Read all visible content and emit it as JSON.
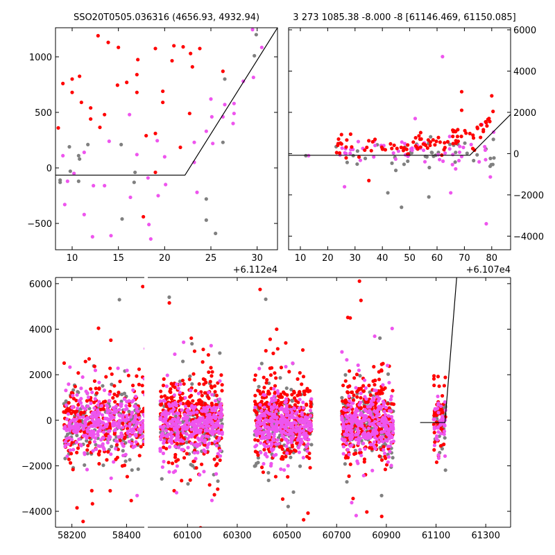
{
  "chart_data": [
    {
      "type": "scatter",
      "title": "SSO20T0505.036316 (4656.93, 4932.94)",
      "xlim": [
        8.2,
        32.2
      ],
      "ylim": [
        -737,
        1262
      ],
      "x_offset_label": "+6.112e4",
      "xticks": [
        10,
        15,
        20,
        25,
        30
      ],
      "yticks": [
        -500,
        0,
        500,
        1000
      ],
      "line": [
        [
          8.2,
          -65
        ],
        [
          22.2,
          -65
        ],
        [
          32.2,
          1262
        ]
      ],
      "series": [
        {
          "name": "red",
          "color": "#ff0000",
          "points": [
            [
              12.8,
              1190
            ],
            [
              13.9,
              1130
            ],
            [
              15,
              1085
            ],
            [
              21,
              1100
            ],
            [
              22,
              1090
            ],
            [
              23.8,
              1075
            ],
            [
              20.8,
              965
            ],
            [
              19,
              1075
            ],
            [
              17.1,
              975
            ],
            [
              10.8,
              825
            ],
            [
              10,
              800
            ],
            [
              9,
              760
            ],
            [
              14.9,
              745
            ],
            [
              15.9,
              770
            ],
            [
              17,
              840
            ],
            [
              17,
              680
            ],
            [
              10,
              680
            ],
            [
              11,
              590
            ],
            [
              12,
              540
            ],
            [
              12,
              440
            ],
            [
              13,
              365
            ],
            [
              13.5,
              480
            ],
            [
              19.8,
              690
            ],
            [
              19.8,
              590
            ],
            [
              22.8,
              1030
            ],
            [
              23,
              910
            ],
            [
              26.3,
              870
            ],
            [
              22.7,
              490
            ],
            [
              18,
              290
            ],
            [
              19,
              310
            ],
            [
              8.5,
              360
            ],
            [
              21.7,
              185
            ],
            [
              19,
              -40
            ],
            [
              17.7,
              -440
            ]
          ]
        },
        {
          "name": "grey",
          "color": "#808080",
          "points": [
            [
              29.9,
              1200
            ],
            [
              29.7,
              1010
            ],
            [
              26.5,
              800
            ],
            [
              26.3,
              230
            ],
            [
              24.5,
              -280
            ],
            [
              24.5,
              -470
            ],
            [
              25.5,
              -590
            ],
            [
              15.4,
              -460
            ],
            [
              16.8,
              -40
            ],
            [
              16.7,
              -130
            ],
            [
              15.3,
              210
            ],
            [
              11.7,
              210
            ],
            [
              10.7,
              110
            ],
            [
              10.8,
              80
            ],
            [
              9.7,
              190
            ],
            [
              8.7,
              -110
            ],
            [
              8.7,
              -130
            ],
            [
              10.7,
              -120
            ],
            [
              9.8,
              -30
            ]
          ]
        },
        {
          "name": "magenta",
          "color": "#ee55ee",
          "points": [
            [
              29.5,
              1245
            ],
            [
              30.5,
              1085
            ],
            [
              28.5,
              780
            ],
            [
              27.5,
              580
            ],
            [
              26.5,
              570
            ],
            [
              27.5,
              490
            ],
            [
              29.6,
              815
            ],
            [
              25,
              620
            ],
            [
              24.5,
              330
            ],
            [
              25.1,
              460
            ],
            [
              26.3,
              460
            ],
            [
              27.4,
              400
            ],
            [
              25.2,
              220
            ],
            [
              23.2,
              230
            ],
            [
              23.2,
              50
            ],
            [
              16.2,
              480
            ],
            [
              14,
              240
            ],
            [
              17,
              120
            ],
            [
              19.2,
              245
            ],
            [
              20,
              100
            ],
            [
              20.1,
              -150
            ],
            [
              18.2,
              -90
            ],
            [
              19.3,
              -250
            ],
            [
              18.3,
              -510
            ],
            [
              18.5,
              -640
            ],
            [
              16.3,
              -265
            ],
            [
              13.5,
              -160
            ],
            [
              12.3,
              -160
            ],
            [
              11.3,
              -420
            ],
            [
              12.2,
              -620
            ],
            [
              14.2,
              -610
            ],
            [
              9.2,
              -330
            ],
            [
              9,
              110
            ],
            [
              10.2,
              -50
            ],
            [
              11.3,
              140
            ],
            [
              9.5,
              -120
            ],
            [
              8,
              160
            ],
            [
              23.5,
              -220
            ]
          ]
        }
      ]
    },
    {
      "type": "scatter",
      "title": "3 273 1085.38 -8.000 -8 [61146.469, 61150.085]",
      "xlim": [
        5.7,
        86.9
      ],
      "ylim": [
        -4660,
        6100
      ],
      "x_offset_label": "+6.107e4",
      "xticks": [
        10,
        20,
        30,
        40,
        50,
        60,
        70,
        80
      ],
      "yticks": [
        -4000,
        -2000,
        0,
        2000,
        4000,
        6000
      ],
      "line": [
        [
          5.7,
          -80
        ],
        [
          72,
          -80
        ],
        [
          86.9,
          1900
        ]
      ],
      "clusters": [
        {
          "x": [
            23,
            81
          ],
          "n": {
            "grey": 45,
            "magenta": 55,
            "red": 95
          },
          "center": {
            "grey": 0,
            "magenta": 100,
            "red": 450
          },
          "sd": {
            "grey": 350,
            "magenta": 350,
            "red": 300
          }
        }
      ],
      "outliers": [
        [
          "magenta",
          62,
          4700
        ],
        [
          "red",
          69,
          3000
        ],
        [
          "red",
          80,
          2800
        ],
        [
          "red",
          69,
          2100
        ],
        [
          "magenta",
          52,
          1700
        ],
        [
          "magenta",
          78,
          -3400
        ],
        [
          "grey",
          47,
          -2600
        ],
        [
          "grey",
          42,
          -1900
        ],
        [
          "magenta",
          65,
          -1900
        ],
        [
          "grey",
          57,
          -2100
        ],
        [
          "magenta",
          13,
          -100
        ],
        [
          "grey",
          12,
          -100
        ],
        [
          "red",
          76,
          1400
        ],
        [
          "red",
          78,
          1500
        ],
        [
          "red",
          79,
          1700
        ]
      ]
    },
    {
      "type": "scatter",
      "title": "",
      "segments": [
        {
          "xlim": [
            58140,
            58465
          ],
          "xticks": [
            58200,
            58400
          ]
        },
        {
          "xlim": [
            59940,
            61400
          ],
          "xticks": [
            60100,
            60300,
            60500,
            60700,
            60900,
            61100,
            61300
          ]
        }
      ],
      "ylim": [
        -4700,
        6270
      ],
      "yticks": [
        -4000,
        -2000,
        0,
        2000,
        4000,
        6000
      ],
      "line": [
        [
          61036,
          -100
        ],
        [
          61136,
          -100
        ],
        [
          61183,
          6270
        ]
      ],
      "clusters": [
        {
          "x": [
            58170,
            58470
          ],
          "n": {
            "grey": 160,
            "red": 260,
            "magenta": 330
          }
        },
        {
          "x": [
            59990,
            60240
          ],
          "n": {
            "grey": 160,
            "red": 330,
            "magenta": 330
          }
        },
        {
          "x": [
            60370,
            60600
          ],
          "n": {
            "grey": 160,
            "red": 330,
            "magenta": 330
          }
        },
        {
          "x": [
            60720,
            60930
          ],
          "n": {
            "grey": 140,
            "red": 300,
            "magenta": 300
          }
        },
        {
          "x": [
            61090,
            61140
          ],
          "n": {
            "grey": 30,
            "red": 50,
            "magenta": 40
          }
        }
      ],
      "center": {
        "grey": -200,
        "red": 200,
        "magenta": -200
      },
      "sd": {
        "grey": 700,
        "red": 900,
        "magenta": 550
      }
    }
  ],
  "colors": {
    "red": "#ff0000",
    "grey": "#808080",
    "magenta": "#ee55ee"
  }
}
